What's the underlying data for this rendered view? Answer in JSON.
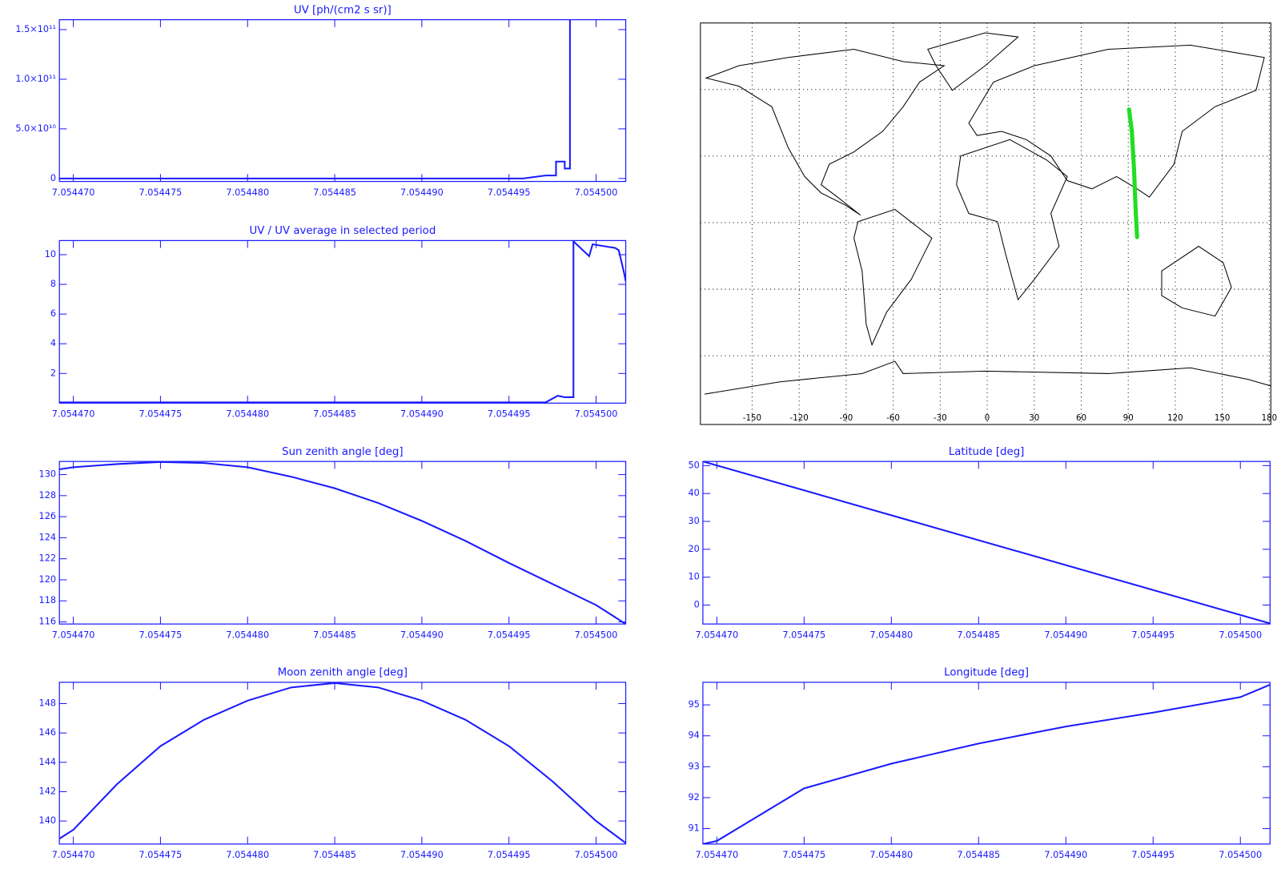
{
  "chart_data": [
    {
      "type": "line",
      "title": "UV [ph/(cm2 s sr)]",
      "color": "#1a1aff",
      "x": [
        7.0544692,
        7.0544958,
        7.0544971,
        7.0544977,
        7.0544977,
        7.0544982,
        7.0544982,
        7.0544985,
        7.0544985
      ],
      "values": [
        0,
        0,
        3000000000,
        3000000000,
        17000000000,
        17000000000,
        10000000000,
        10000000000,
        160000000000
      ],
      "xlim": [
        7.0544692,
        7.0545017
      ],
      "ylim": [
        -3000000000,
        160000000000
      ],
      "xticks": [
        {
          "value": 7.05447,
          "label": "7.054470"
        },
        7.054475,
        {
          "value": 7.05448,
          "label": "7.054480"
        },
        7.054485,
        {
          "value": 7.05449,
          "label": "7.054490"
        },
        7.054495,
        {
          "value": 7.0545,
          "label": "7.054500"
        }
      ],
      "yticks": [
        0,
        {
          "value": 50000000000,
          "label": "5.0×10¹⁰"
        },
        {
          "value": 100000000000,
          "label": "1.0×10¹¹"
        },
        {
          "value": 150000000000,
          "label": "1.5×10¹¹"
        }
      ]
    },
    {
      "type": "line",
      "title": "UV / UV average in selected period",
      "color": "#1a1aff",
      "x": [
        7.0544692,
        7.0544971,
        7.0544978,
        7.0544982,
        7.0544987,
        7.0544987,
        7.0544996,
        7.0544998,
        7.0545011,
        7.0545013,
        7.0545016,
        7.0545017
      ],
      "values": [
        0.05,
        0.05,
        0.5,
        0.4,
        0.4,
        10.9,
        9.9,
        10.7,
        10.45,
        10.3,
        8.8,
        8.2
      ],
      "xlim": [
        7.0544692,
        7.0545017
      ],
      "ylim": [
        0,
        10.95
      ],
      "xticks": [
        {
          "value": 7.05447,
          "label": "7.054470"
        },
        7.054475,
        {
          "value": 7.05448,
          "label": "7.054480"
        },
        7.054485,
        {
          "value": 7.05449,
          "label": "7.054490"
        },
        7.054495,
        {
          "value": 7.0545,
          "label": "7.054500"
        }
      ],
      "yticks": [
        2,
        4,
        6,
        8,
        10
      ]
    },
    {
      "type": "line",
      "title": "Sun zenith angle [deg]",
      "color": "#1a1aff",
      "x": [
        7.0544692,
        7.05447,
        7.0544725,
        7.054475,
        7.0544775,
        7.05448,
        7.0544825,
        7.054485,
        7.0544875,
        7.05449,
        7.0544925,
        7.054495,
        7.0544975,
        7.0545,
        7.0545017
      ],
      "values": [
        130.5,
        130.7,
        131.0,
        131.2,
        131.1,
        130.7,
        129.8,
        128.7,
        127.3,
        125.6,
        123.7,
        121.6,
        119.6,
        117.6,
        115.8
      ],
      "xlim": [
        7.0544692,
        7.0545017
      ],
      "ylim": [
        115.8,
        131.25
      ],
      "xticks": [
        {
          "value": 7.05447,
          "label": "7.054470"
        },
        7.054475,
        {
          "value": 7.05448,
          "label": "7.054480"
        },
        7.054485,
        {
          "value": 7.05449,
          "label": "7.054490"
        },
        7.054495,
        {
          "value": 7.0545,
          "label": "7.054500"
        }
      ],
      "yticks": [
        116,
        118,
        120,
        122,
        124,
        126,
        128,
        130
      ]
    },
    {
      "type": "line",
      "title": "Moon zenith angle [deg]",
      "color": "#1a1aff",
      "x": [
        7.0544692,
        7.05447,
        7.0544725,
        7.054475,
        7.0544775,
        7.05448,
        7.0544825,
        7.054485,
        7.0544875,
        7.05449,
        7.0544925,
        7.054495,
        7.0544975,
        7.0545,
        7.0545017
      ],
      "values": [
        138.8,
        139.4,
        142.5,
        145.1,
        146.9,
        148.2,
        149.1,
        149.4,
        149.1,
        148.2,
        146.9,
        145.1,
        142.7,
        140.0,
        138.5
      ],
      "xlim": [
        7.0544692,
        7.0545017
      ],
      "ylim": [
        138.43,
        149.45
      ],
      "xticks": [
        {
          "value": 7.05447,
          "label": "7.054470"
        },
        7.054475,
        {
          "value": 7.05448,
          "label": "7.054480"
        },
        7.054485,
        {
          "value": 7.05449,
          "label": "7.054490"
        },
        7.054495,
        {
          "value": 7.0545,
          "label": "7.054500"
        }
      ],
      "yticks": [
        140,
        142,
        144,
        146,
        148
      ]
    },
    {
      "type": "line",
      "title": "Latitude [deg]",
      "color": "#1a1aff",
      "x": [
        7.0544692,
        7.0545017
      ],
      "values": [
        51.5,
        -6.6
      ],
      "xlim": [
        7.0544692,
        7.0545017
      ],
      "ylim": [
        -6.8,
        51.5
      ],
      "xticks": [
        {
          "value": 7.05447,
          "label": "7.054470"
        },
        7.054475,
        {
          "value": 7.05448,
          "label": "7.054480"
        },
        7.054485,
        {
          "value": 7.05449,
          "label": "7.054490"
        },
        7.054495,
        {
          "value": 7.0545,
          "label": "7.054500"
        }
      ],
      "yticks": [
        0,
        10,
        20,
        30,
        40,
        50
      ]
    },
    {
      "type": "line",
      "title": "Longitude [deg]",
      "color": "#1a1aff",
      "x": [
        7.0544692,
        7.05447,
        7.054475,
        7.05448,
        7.054485,
        7.05449,
        7.054495,
        7.0545,
        7.0545017
      ],
      "values": [
        90.5,
        90.6,
        92.3,
        93.1,
        93.75,
        94.3,
        94.75,
        95.25,
        95.65
      ],
      "xlim": [
        7.0544692,
        7.0545017
      ],
      "ylim": [
        90.5,
        95.73
      ],
      "xticks": [
        {
          "value": 7.05447,
          "label": "7.054470"
        },
        7.054475,
        {
          "value": 7.05448,
          "label": "7.054480"
        },
        7.054485,
        {
          "value": 7.05449,
          "label": "7.054490"
        },
        7.054495,
        {
          "value": 7.0545,
          "label": "7.054500"
        }
      ],
      "yticks": [
        91,
        92,
        93,
        94,
        95
      ]
    },
    {
      "type": "map",
      "color": "#22dd22",
      "x": [
        90.5,
        92.3,
        93.75,
        94.75,
        95.65
      ],
      "values": [
        51,
        41.1,
        23.2,
        5.3,
        -6.5
      ],
      "xlim": [
        -183,
        181
      ],
      "ylim": [
        -91,
        90
      ],
      "xticks": [
        -150,
        -120,
        -90,
        -60,
        -30,
        0,
        30,
        60,
        90,
        120,
        150,
        180
      ],
      "yticks": [
        -60,
        -30,
        0,
        30,
        60
      ],
      "grid": true
    }
  ]
}
